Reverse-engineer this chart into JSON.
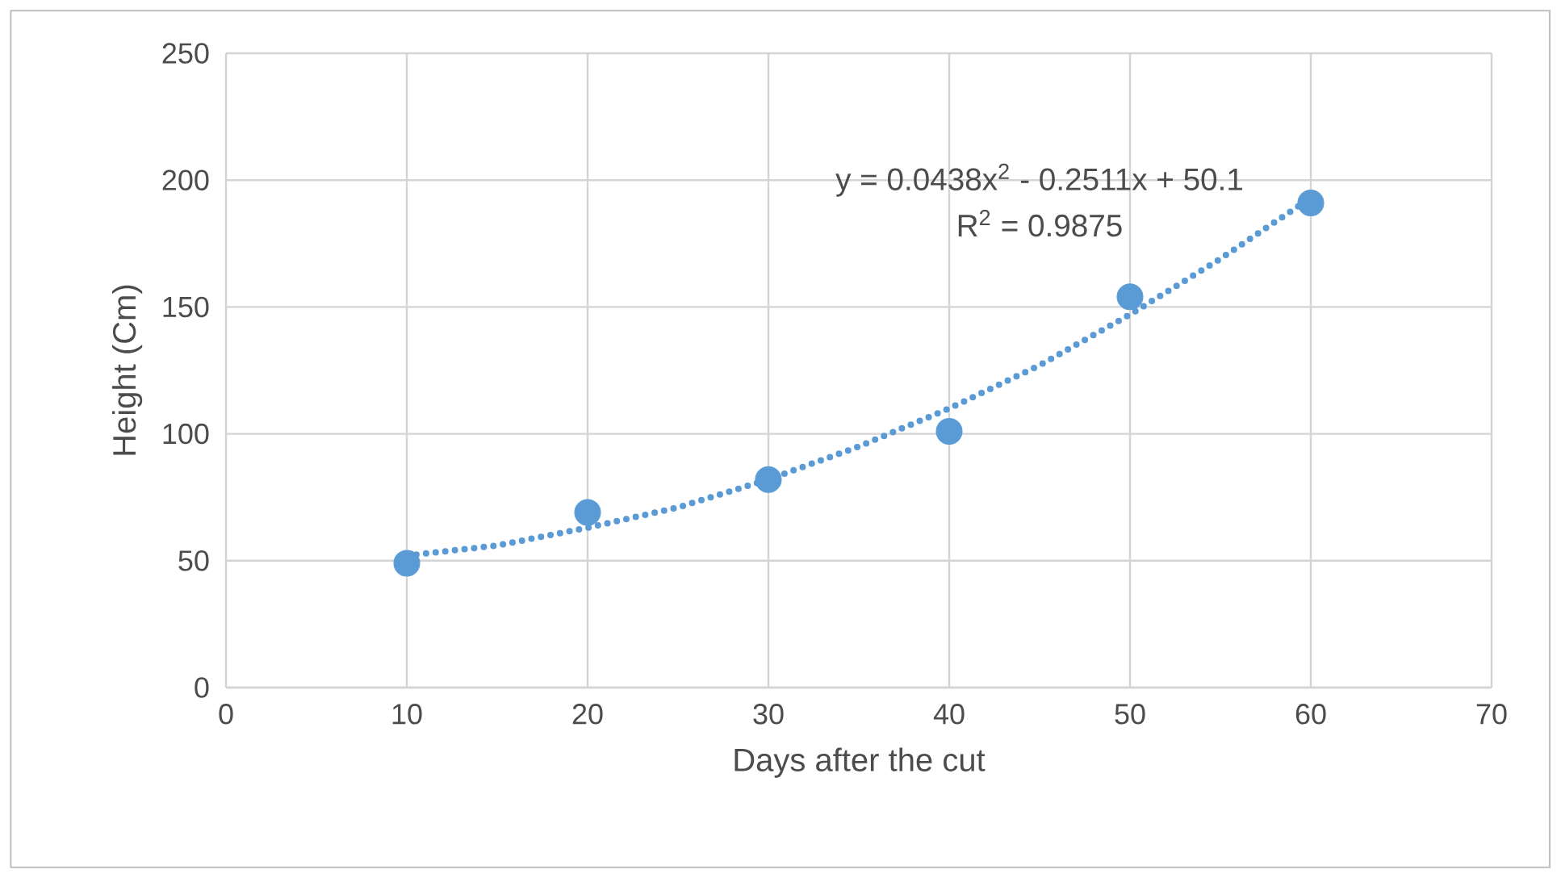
{
  "chart_data": {
    "type": "scatter",
    "xlabel": "Days after the cut",
    "ylabel": "Height (Cm)",
    "series": [
      {
        "color": "#5b9bd5",
        "marker": "circle",
        "x": [
          10,
          20,
          30,
          40,
          50,
          60
        ],
        "values": [
          49,
          69,
          82,
          101,
          154,
          191
        ]
      },
      {
        "type": "line",
        "color": "#5b9bd5",
        "marker": "none",
        "line_style": "dotted",
        "x": [
          10,
          15,
          20,
          25,
          30,
          35,
          40,
          45,
          50,
          55,
          60
        ],
        "values": [
          52,
          56,
          63,
          71,
          82,
          95,
          110,
          127,
          147,
          169,
          193
        ]
      }
    ],
    "annotations": [
      "y = 0.0438x$^{2}$ - 0.2511x + 50.1",
      "R$^{2}$ = 0.9875"
    ],
    "xlim": [
      0,
      70
    ],
    "xticks": [
      0,
      10,
      20,
      30,
      40,
      50,
      60,
      70
    ],
    "ylim": [
      0,
      250
    ],
    "yticks": [
      0,
      50,
      100,
      150,
      200,
      250
    ],
    "grid": true
  }
}
